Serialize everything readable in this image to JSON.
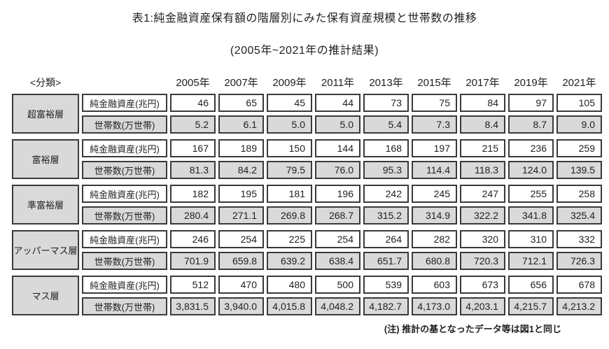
{
  "title": "表1:純金融資産保有額の階層別にみた保有資産規模と世帯数の推移",
  "subtitle": "(2005年~2021年の推計結果)",
  "footnote": "(注) 推計の基となったデータ等は図1と同じ",
  "colors": {
    "cell_gray": "#d9d9d9",
    "border": "#3a3a3a",
    "background": "#ffffff",
    "text": "#1f1f1f"
  },
  "chart_data": {
    "type": "table",
    "classification_header": "<分類>",
    "years": [
      "2005年",
      "2007年",
      "2009年",
      "2011年",
      "2013年",
      "2015年",
      "2017年",
      "2019年",
      "2021年"
    ],
    "row_labels": {
      "assets": "純金融資産(兆円)",
      "households": "世帯数(万世帯)"
    },
    "tiers": [
      {
        "name": "超富裕層",
        "assets": [
          "46",
          "65",
          "45",
          "44",
          "73",
          "75",
          "84",
          "97",
          "105"
        ],
        "households": [
          "5.2",
          "6.1",
          "5.0",
          "5.0",
          "5.4",
          "7.3",
          "8.4",
          "8.7",
          "9.0"
        ]
      },
      {
        "name": "富裕層",
        "assets": [
          "167",
          "189",
          "150",
          "144",
          "168",
          "197",
          "215",
          "236",
          "259"
        ],
        "households": [
          "81.3",
          "84.2",
          "79.5",
          "76.0",
          "95.3",
          "114.4",
          "118.3",
          "124.0",
          "139.5"
        ]
      },
      {
        "name": "準富裕層",
        "assets": [
          "182",
          "195",
          "181",
          "196",
          "242",
          "245",
          "247",
          "255",
          "258"
        ],
        "households": [
          "280.4",
          "271.1",
          "269.8",
          "268.7",
          "315.2",
          "314.9",
          "322.2",
          "341.8",
          "325.4"
        ]
      },
      {
        "name": "アッパーマス層",
        "assets": [
          "246",
          "254",
          "225",
          "254",
          "264",
          "282",
          "320",
          "310",
          "332"
        ],
        "households": [
          "701.9",
          "659.8",
          "639.2",
          "638.4",
          "651.7",
          "680.8",
          "720.3",
          "712.1",
          "726.3"
        ]
      },
      {
        "name": "マス層",
        "assets": [
          "512",
          "470",
          "480",
          "500",
          "539",
          "603",
          "673",
          "656",
          "678"
        ],
        "households": [
          "3,831.5",
          "3,940.0",
          "4,015.8",
          "4,048.2",
          "4,182.7",
          "4,173.0",
          "4,203.1",
          "4,215.7",
          "4,213.2"
        ]
      }
    ]
  }
}
